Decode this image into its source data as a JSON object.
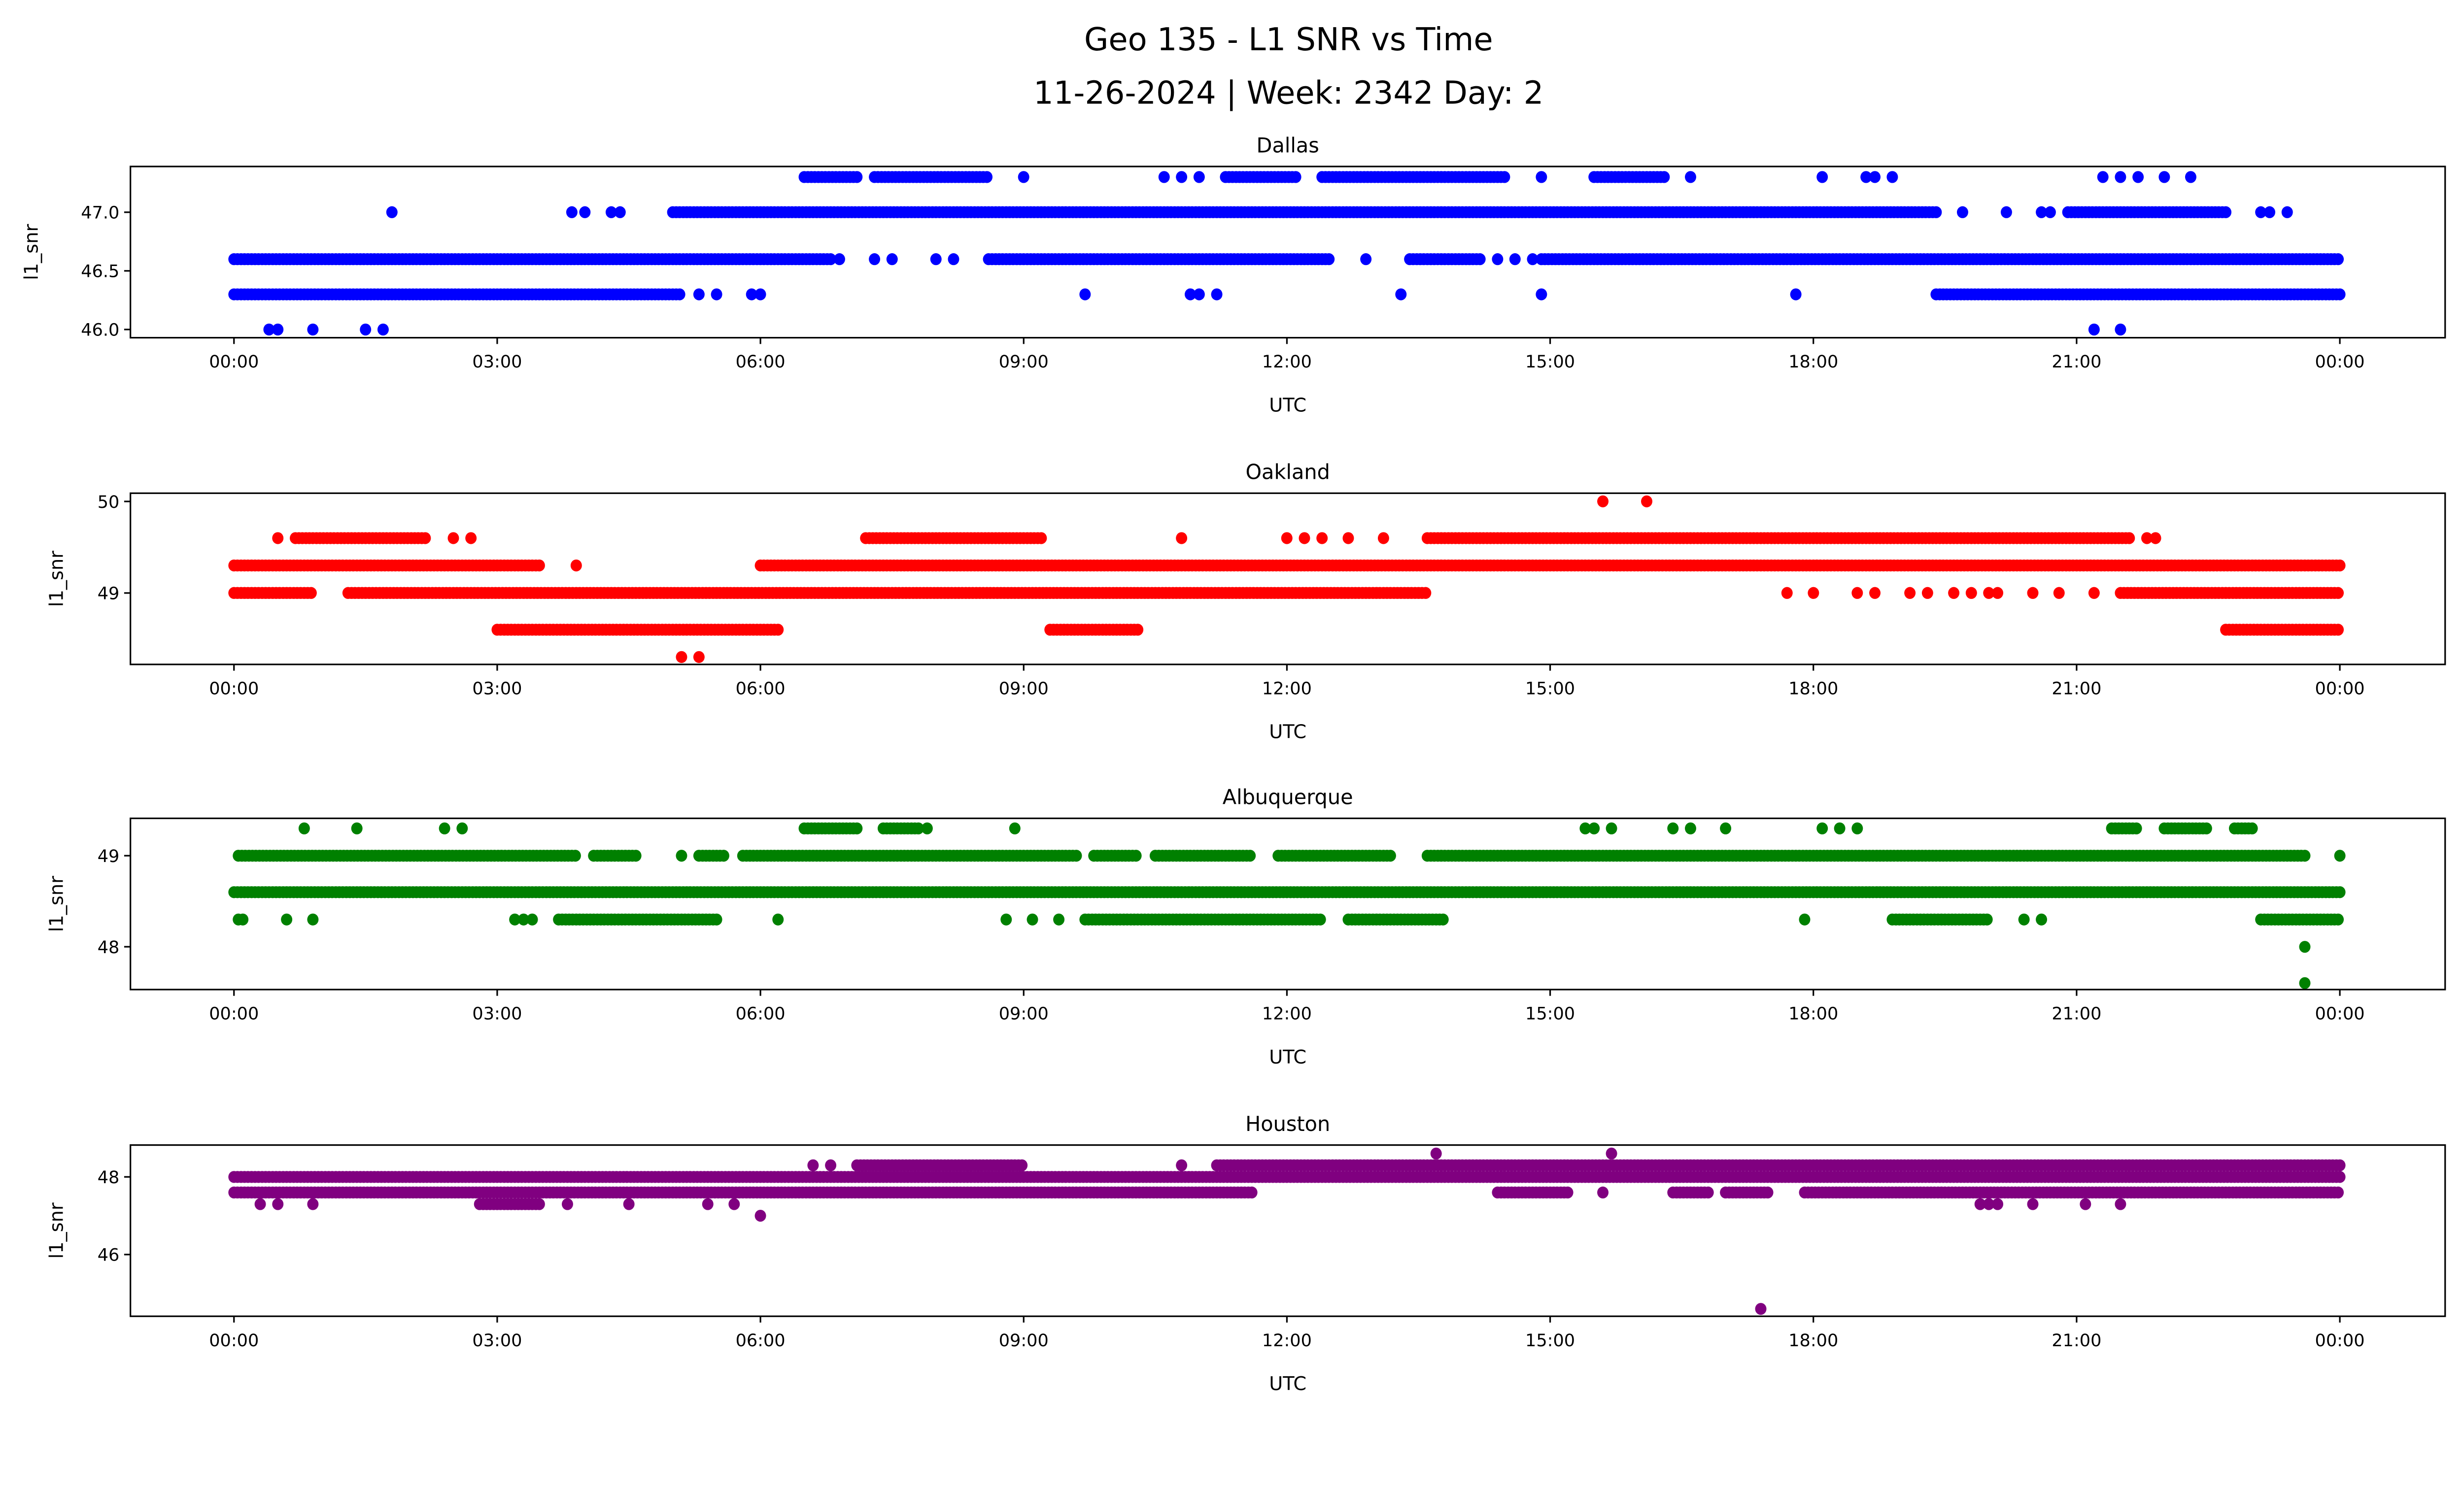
{
  "chart_data": {
    "type": "scatter",
    "title_line1": "Geo 135 - L1 SNR vs Time",
    "title_line2": "11-26-2024 | Week: 2342 Day: 2",
    "xlabel": "UTC",
    "ylabel": "l1_snr",
    "x_unit": "hours UTC",
    "xlim": [
      -1.18,
      25.2
    ],
    "x_ticks": [
      0,
      3,
      6,
      9,
      12,
      15,
      18,
      21,
      24
    ],
    "x_tick_labels": [
      "00:00",
      "03:00",
      "06:00",
      "09:00",
      "12:00",
      "15:00",
      "18:00",
      "21:00",
      "00:00"
    ],
    "subplots": [
      {
        "title": "Dallas",
        "color": "#0000ff",
        "ylim": [
          45.93,
          47.39
        ],
        "y_ticks": [
          46.0,
          46.5,
          47.0
        ],
        "y_tick_labels": [
          "46.0",
          "46.5",
          "47.0"
        ],
        "levels": [
          {
            "y": 46.6,
            "runs": [
              [
                0,
                6.8
              ],
              [
                8.6,
                12.5
              ],
              [
                13.4,
                14.2
              ],
              [
                14.9,
                24
              ]
            ],
            "points": [
              6.9,
              7.3,
              7.5,
              8.0,
              8.2,
              12.9,
              14.4,
              14.6,
              14.8
            ]
          },
          {
            "y": 46.3,
            "runs": [
              [
                0,
                5.1
              ],
              [
                19.4,
                24
              ]
            ],
            "points": [
              5.3,
              5.5,
              5.9,
              6.0,
              9.7,
              10.9,
              11.0,
              11.2,
              13.3,
              14.9,
              17.8
            ]
          },
          {
            "y": 46.0,
            "runs": [],
            "points": [
              0.4,
              0.5,
              0.9,
              1.5,
              1.7,
              21.2,
              21.5
            ]
          },
          {
            "y": 47.0,
            "runs": [
              [
                5.0,
                19.4
              ],
              [
                20.9,
                22.7
              ]
            ],
            "points": [
              1.8,
              3.85,
              4.0,
              4.3,
              4.4,
              19.7,
              20.2,
              20.6,
              20.7,
              23.1,
              23.2,
              23.4
            ]
          },
          {
            "y": 47.3,
            "runs": [
              [
                6.5,
                7.1
              ],
              [
                7.3,
                8.6
              ],
              [
                11.3,
                12.1
              ],
              [
                12.4,
                14.5
              ],
              [
                15.5,
                16.3
              ]
            ],
            "points": [
              9.0,
              10.6,
              10.8,
              11.0,
              14.9,
              16.6,
              18.1,
              18.6,
              18.7,
              18.9,
              21.3,
              21.5,
              21.7,
              22.0,
              22.3
            ]
          }
        ]
      },
      {
        "title": "Oakland",
        "color": "#ff0000",
        "ylim": [
          48.22,
          50.09
        ],
        "y_ticks": [
          49,
          50
        ],
        "y_tick_labels": [
          "49",
          "50"
        ],
        "levels": [
          {
            "y": 49.3,
            "runs": [
              [
                0,
                3.5
              ],
              [
                6.0,
                24
              ]
            ],
            "points": [
              3.9
            ]
          },
          {
            "y": 49.0,
            "runs": [
              [
                0,
                0.9
              ],
              [
                1.3,
                13.6
              ],
              [
                21.5,
                24
              ]
            ],
            "points": [
              17.7,
              18.0,
              18.5,
              18.7,
              19.1,
              19.3,
              19.6,
              19.8,
              20.0,
              20.1,
              20.5,
              20.8,
              21.2
            ]
          },
          {
            "y": 49.6,
            "runs": [
              [
                0.7,
                2.2
              ],
              [
                7.2,
                9.2
              ],
              [
                13.6,
                21.6
              ]
            ],
            "points": [
              0.5,
              2.5,
              2.7,
              10.8,
              12.0,
              12.2,
              12.4,
              12.7,
              13.1,
              21.8,
              21.9
            ]
          },
          {
            "y": 48.6,
            "runs": [
              [
                3.0,
                6.2
              ],
              [
                9.3,
                10.3
              ],
              [
                22.7,
                24
              ]
            ],
            "points": []
          },
          {
            "y": 48.3,
            "runs": [],
            "points": [
              5.1,
              5.3
            ]
          },
          {
            "y": 50.0,
            "runs": [],
            "points": [
              15.6,
              16.1
            ]
          }
        ]
      },
      {
        "title": "Albuquerque",
        "color": "#008000",
        "ylim": [
          47.53,
          49.41
        ],
        "y_ticks": [
          48,
          49
        ],
        "y_tick_labels": [
          "48",
          "49"
        ],
        "levels": [
          {
            "y": 49.3,
            "runs": [
              [
                6.5,
                7.1
              ],
              [
                7.4,
                7.8
              ],
              [
                21.4,
                21.7
              ],
              [
                22.0,
                22.5
              ],
              [
                22.8,
                23.0
              ]
            ],
            "points": [
              0.8,
              1.4,
              2.4,
              2.6,
              7.9,
              8.9,
              15.4,
              15.5,
              15.7,
              16.4,
              16.6,
              17.0,
              18.1,
              18.3,
              18.5
            ]
          },
          {
            "y": 49.0,
            "runs": [
              [
                0.05,
                3.9
              ],
              [
                4.1,
                4.6
              ],
              [
                5.3,
                5.6
              ],
              [
                5.8,
                9.6
              ],
              [
                9.8,
                10.3
              ],
              [
                10.5,
                11.6
              ],
              [
                11.9,
                13.2
              ],
              [
                13.6,
                23.6
              ]
            ],
            "points": [
              5.1,
              24.0
            ]
          },
          {
            "y": 48.6,
            "runs": [
              [
                0,
                24
              ]
            ],
            "points": []
          },
          {
            "y": 48.3,
            "runs": [
              [
                3.7,
                5.5
              ],
              [
                9.7,
                12.4
              ],
              [
                12.7,
                13.8
              ],
              [
                18.9,
                20.0
              ],
              [
                23.1,
                24
              ]
            ],
            "points": [
              0.05,
              0.1,
              0.6,
              0.9,
              3.2,
              3.3,
              3.4,
              6.2,
              8.8,
              9.1,
              9.4,
              17.9,
              20.4,
              20.6
            ]
          },
          {
            "y": 48.0,
            "runs": [],
            "points": [
              23.6
            ]
          },
          {
            "y": 47.6,
            "runs": [],
            "points": [
              23.6
            ]
          }
        ]
      },
      {
        "title": "Houston",
        "color": "#800080",
        "ylim": [
          44.41,
          48.82
        ],
        "y_ticks": [
          46,
          48
        ],
        "y_tick_labels": [
          "46",
          "48"
        ],
        "levels": [
          {
            "y": 48.0,
            "runs": [
              [
                0,
                24
              ]
            ],
            "points": []
          },
          {
            "y": 47.6,
            "runs": [
              [
                0,
                11.6
              ],
              [
                14.4,
                15.2
              ],
              [
                16.4,
                16.8
              ],
              [
                17.0,
                17.5
              ],
              [
                17.9,
                24
              ]
            ],
            "points": [
              15.6
            ]
          },
          {
            "y": 47.3,
            "runs": [
              [
                2.8,
                3.5
              ]
            ],
            "points": [
              0.3,
              0.5,
              0.9,
              3.8,
              4.5,
              5.4,
              5.7,
              19.9,
              20.0,
              20.1,
              20.5,
              21.1,
              21.5
            ]
          },
          {
            "y": 48.3,
            "runs": [
              [
                7.1,
                9.0
              ],
              [
                11.2,
                24
              ]
            ],
            "points": [
              6.6,
              6.8,
              10.8
            ]
          },
          {
            "y": 48.6,
            "runs": [],
            "points": [
              13.7,
              15.7
            ]
          },
          {
            "y": 47.0,
            "runs": [],
            "points": [
              6.0
            ]
          },
          {
            "y": 44.6,
            "runs": [],
            "points": [
              17.4
            ]
          }
        ]
      }
    ]
  }
}
